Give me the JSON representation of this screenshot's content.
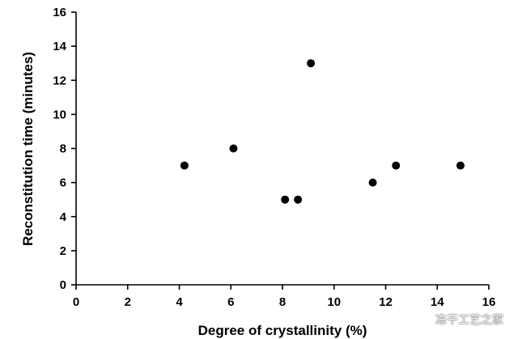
{
  "chart_data": {
    "type": "scatter",
    "xlabel": "Degree of crystallinity (%)",
    "ylabel": "Reconstitution time (minutes)",
    "xlim": [
      0,
      16
    ],
    "ylim": [
      0,
      16
    ],
    "xticks": [
      0,
      2,
      4,
      6,
      8,
      10,
      12,
      14,
      16
    ],
    "yticks": [
      0,
      2,
      4,
      6,
      8,
      10,
      12,
      14,
      16
    ],
    "grid": false,
    "marker_color": "#000000",
    "points": [
      {
        "x": 4.2,
        "y": 7
      },
      {
        "x": 6.1,
        "y": 8
      },
      {
        "x": 8.1,
        "y": 5
      },
      {
        "x": 8.6,
        "y": 5
      },
      {
        "x": 9.1,
        "y": 13
      },
      {
        "x": 11.5,
        "y": 6
      },
      {
        "x": 12.4,
        "y": 7
      },
      {
        "x": 14.9,
        "y": 7
      }
    ]
  },
  "watermark": {
    "text": "冻干工艺之家",
    "icon": "wechat-icon"
  }
}
